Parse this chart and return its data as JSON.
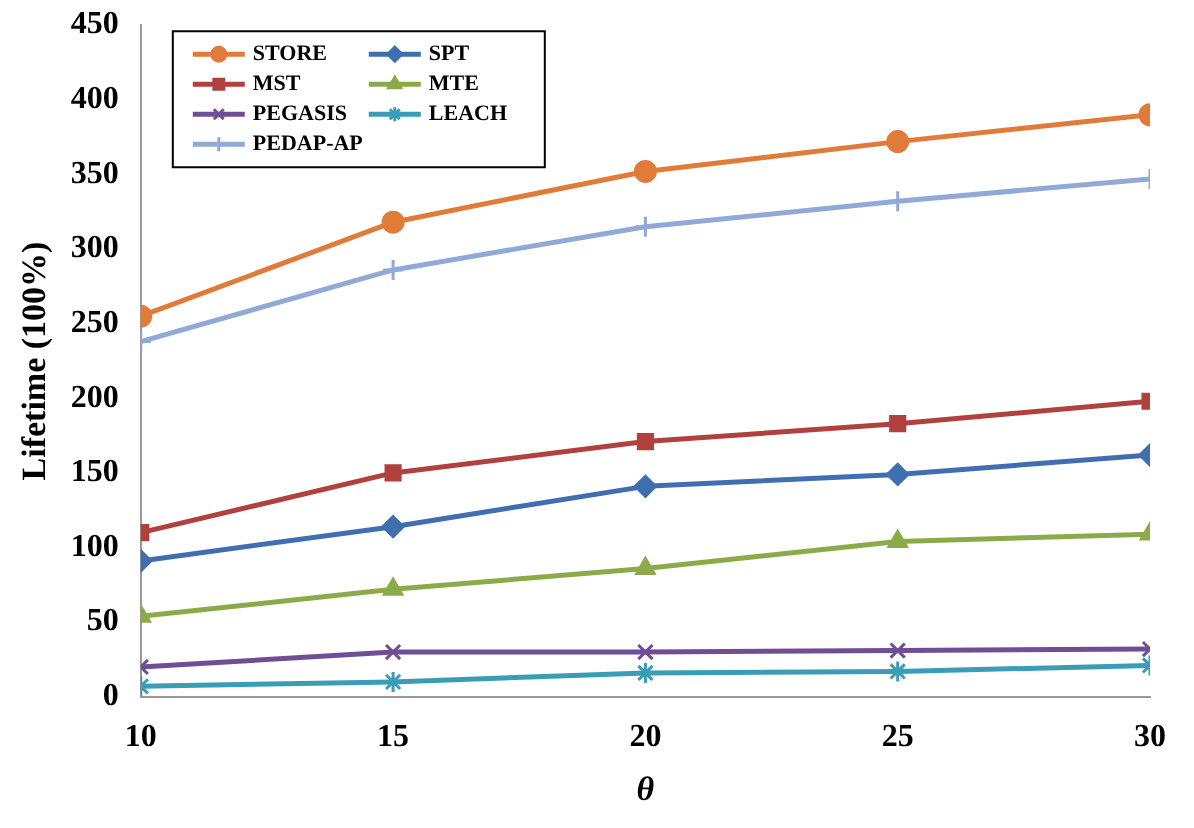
{
  "chart_data": {
    "type": "line",
    "xlabel": "θ",
    "ylabel": "Lifetime (100%)",
    "x": [
      10,
      15,
      20,
      25,
      30
    ],
    "xlim": [
      10,
      30
    ],
    "xticks": [
      10,
      15,
      20,
      25,
      30
    ],
    "ylim": [
      0,
      450
    ],
    "yticks": [
      0,
      50,
      100,
      150,
      200,
      250,
      300,
      350,
      400,
      450
    ],
    "grid": false,
    "legend": "top left",
    "series": [
      {
        "name": "STORE",
        "color": "#e07b39",
        "marker": "circle",
        "values": [
          255,
          318,
          352,
          372,
          390
        ]
      },
      {
        "name": "SPT",
        "color": "#3f6fb0",
        "marker": "diamond",
        "values": [
          91,
          114,
          141,
          149,
          162
        ]
      },
      {
        "name": "MST",
        "color": "#b0413e",
        "marker": "square",
        "values": [
          110,
          150,
          171,
          183,
          198
        ]
      },
      {
        "name": "MTE",
        "color": "#8bab4a",
        "marker": "triangle",
        "values": [
          54,
          72,
          86,
          104,
          109
        ]
      },
      {
        "name": "PEGASIS",
        "color": "#6f4e96",
        "marker": "cross",
        "values": [
          20,
          30,
          30,
          31,
          32
        ]
      },
      {
        "name": "LEACH",
        "color": "#3a9cb5",
        "marker": "cross",
        "values": [
          7,
          10,
          16,
          17,
          21
        ]
      },
      {
        "name": "PEDAP-AP",
        "color": "#91a9d6",
        "marker": "cross",
        "values": [
          238,
          286,
          315,
          332,
          347
        ]
      }
    ]
  }
}
